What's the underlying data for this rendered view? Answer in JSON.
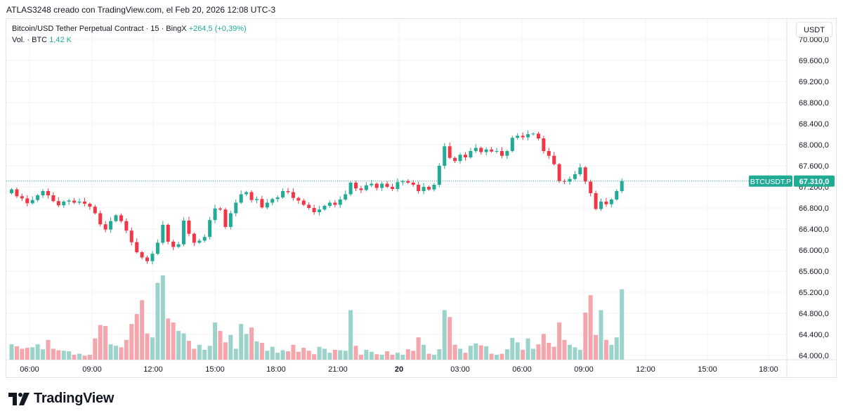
{
  "caption": "ATLAS3248 creado con TradingView.com, el Feb 20, 2026 12:08 UTC-3",
  "legend": {
    "symbol": "Bitcoin/USD Tether Perpetual Contract · 15 · BingX",
    "change": "+264,5 (+0,39%)",
    "volume_label": "Vol. · BTC",
    "volume_value": "1,42 K"
  },
  "currency_button": "USDT",
  "price_tag": {
    "symbol": "BTCUSDT.P",
    "value": "67.310,0"
  },
  "logo_text": "TradingView",
  "colors": {
    "up": "#22ab94",
    "down": "#f23645",
    "up_vol": "#9bd3ca",
    "down_vol": "#f5a6ad",
    "price_line": "#22ab94"
  },
  "chart_data": {
    "type": "candlestick",
    "interval": "15",
    "y_axis": {
      "ticks": [
        64000,
        64400,
        64800,
        65200,
        65600,
        66000,
        66400,
        66800,
        67200,
        67600,
        68000,
        68400,
        68800,
        69200,
        69600,
        70000
      ],
      "tick_labels": [
        "64.000,0",
        "64.400,0",
        "64.800,0",
        "65.200,0",
        "65.600,0",
        "66.000,0",
        "66.400,0",
        "66.800,0",
        "67.200,0",
        "67.600,0",
        "68.000,0",
        "68.400,0",
        "68.800,0",
        "69.200,0",
        "69.600,0",
        "70.000,0"
      ],
      "range": [
        63950,
        70100
      ]
    },
    "x_axis": {
      "labels": [
        "06:00",
        "09:00",
        "12:00",
        "15:00",
        "18:00",
        "21:00",
        "20",
        "03:00",
        "06:00",
        "09:00",
        "12:00",
        "15:00",
        "18:00"
      ]
    },
    "last_price": 67310,
    "series": [
      {
        "c": 67153,
        "v": 0.31
      },
      {
        "c": 67023,
        "v": 0.27
      },
      {
        "c": 66981,
        "v": 0.22
      },
      {
        "c": 66890,
        "v": 0.24
      },
      {
        "c": 66950,
        "v": 0.25
      },
      {
        "c": 67040,
        "v": 0.31
      },
      {
        "c": 67120,
        "v": 0.21
      },
      {
        "c": 67040,
        "v": 0.4
      },
      {
        "c": 66930,
        "v": 0.22
      },
      {
        "c": 66850,
        "v": 0.19
      },
      {
        "c": 66920,
        "v": 0.18
      },
      {
        "c": 66940,
        "v": 0.17
      },
      {
        "c": 66900,
        "v": 0.1
      },
      {
        "c": 66920,
        "v": 0.12
      },
      {
        "c": 66880,
        "v": 0.08
      },
      {
        "c": 66823,
        "v": 0.1
      },
      {
        "c": 66700,
        "v": 0.43
      },
      {
        "c": 66490,
        "v": 0.7
      },
      {
        "c": 66390,
        "v": 0.68
      },
      {
        "c": 66550,
        "v": 0.31
      },
      {
        "c": 66660,
        "v": 0.28
      },
      {
        "c": 66550,
        "v": 0.25
      },
      {
        "c": 66370,
        "v": 0.4
      },
      {
        "c": 66150,
        "v": 0.72
      },
      {
        "c": 65960,
        "v": 0.92
      },
      {
        "c": 65860,
        "v": 1.2
      },
      {
        "c": 65790,
        "v": 0.53
      },
      {
        "c": 65930,
        "v": 0.45
      },
      {
        "c": 66140,
        "v": 1.55
      },
      {
        "c": 66480,
        "v": 1.7
      },
      {
        "c": 66160,
        "v": 0.83
      },
      {
        "c": 66060,
        "v": 0.75
      },
      {
        "c": 66110,
        "v": 0.58
      },
      {
        "c": 66560,
        "v": 0.53
      },
      {
        "c": 66310,
        "v": 0.38
      },
      {
        "c": 66140,
        "v": 0.22
      },
      {
        "c": 66180,
        "v": 0.3
      },
      {
        "c": 66250,
        "v": 0.2
      },
      {
        "c": 66570,
        "v": 0.28
      },
      {
        "c": 66790,
        "v": 0.75
      },
      {
        "c": 66770,
        "v": 0.58
      },
      {
        "c": 66440,
        "v": 0.35
      },
      {
        "c": 66700,
        "v": 0.5
      },
      {
        "c": 66900,
        "v": 0.22
      },
      {
        "c": 67060,
        "v": 0.72
      },
      {
        "c": 67100,
        "v": 0.52
      },
      {
        "c": 66950,
        "v": 0.65
      },
      {
        "c": 66970,
        "v": 0.37
      },
      {
        "c": 66810,
        "v": 0.34
      },
      {
        "c": 66900,
        "v": 0.18
      },
      {
        "c": 66970,
        "v": 0.26
      },
      {
        "c": 67000,
        "v": 0.14
      },
      {
        "c": 67120,
        "v": 0.19
      },
      {
        "c": 67100,
        "v": 0.17
      },
      {
        "c": 66990,
        "v": 0.3
      },
      {
        "c": 66940,
        "v": 0.16
      },
      {
        "c": 66860,
        "v": 0.24
      },
      {
        "c": 66800,
        "v": 0.18
      },
      {
        "c": 66720,
        "v": 0.11
      },
      {
        "c": 66770,
        "v": 0.26
      },
      {
        "c": 66840,
        "v": 0.22
      },
      {
        "c": 66900,
        "v": 0.14
      },
      {
        "c": 66860,
        "v": 0.2
      },
      {
        "c": 66960,
        "v": 0.19
      },
      {
        "c": 67060,
        "v": 0.18
      },
      {
        "c": 67280,
        "v": 1.0
      },
      {
        "c": 67170,
        "v": 0.28
      },
      {
        "c": 67140,
        "v": 0.1
      },
      {
        "c": 67230,
        "v": 0.2
      },
      {
        "c": 67260,
        "v": 0.16
      },
      {
        "c": 67180,
        "v": 0.11
      },
      {
        "c": 67260,
        "v": 0.1
      },
      {
        "c": 67200,
        "v": 0.17
      },
      {
        "c": 67160,
        "v": 0.1
      },
      {
        "c": 67290,
        "v": 0.14
      },
      {
        "c": 67310,
        "v": 0.1
      },
      {
        "c": 67280,
        "v": 0.21
      },
      {
        "c": 67240,
        "v": 0.18
      },
      {
        "c": 67120,
        "v": 0.45
      },
      {
        "c": 67200,
        "v": 0.3
      },
      {
        "c": 67150,
        "v": 0.12
      },
      {
        "c": 67240,
        "v": 0.1
      },
      {
        "c": 67600,
        "v": 0.21
      },
      {
        "c": 67970,
        "v": 1.0
      },
      {
        "c": 67750,
        "v": 0.86
      },
      {
        "c": 67690,
        "v": 0.3
      },
      {
        "c": 67810,
        "v": 0.22
      },
      {
        "c": 67760,
        "v": 0.14
      },
      {
        "c": 67880,
        "v": 0.28
      },
      {
        "c": 67940,
        "v": 0.33
      },
      {
        "c": 67860,
        "v": 0.29
      },
      {
        "c": 67910,
        "v": 0.27
      },
      {
        "c": 67870,
        "v": 0.12
      },
      {
        "c": 67880,
        "v": 0.1
      },
      {
        "c": 67790,
        "v": 0.12
      },
      {
        "c": 67880,
        "v": 0.21
      },
      {
        "c": 68130,
        "v": 0.44
      },
      {
        "c": 68170,
        "v": 0.35
      },
      {
        "c": 68140,
        "v": 0.2
      },
      {
        "c": 68200,
        "v": 0.43
      },
      {
        "c": 68210,
        "v": 0.22
      },
      {
        "c": 68120,
        "v": 0.31
      },
      {
        "c": 67880,
        "v": 0.52
      },
      {
        "c": 67790,
        "v": 0.34
      },
      {
        "c": 67630,
        "v": 0.26
      },
      {
        "c": 67310,
        "v": 0.75
      },
      {
        "c": 67300,
        "v": 0.4
      },
      {
        "c": 67350,
        "v": 0.3
      },
      {
        "c": 67440,
        "v": 0.25
      },
      {
        "c": 67570,
        "v": 0.2
      },
      {
        "c": 67300,
        "v": 0.95
      },
      {
        "c": 67080,
        "v": 1.3
      },
      {
        "c": 66780,
        "v": 0.5
      },
      {
        "c": 66920,
        "v": 1.0
      },
      {
        "c": 66870,
        "v": 0.4
      },
      {
        "c": 66960,
        "v": 0.3
      },
      {
        "c": 67120,
        "v": 0.45
      },
      {
        "c": 67310,
        "v": 1.42
      }
    ]
  }
}
